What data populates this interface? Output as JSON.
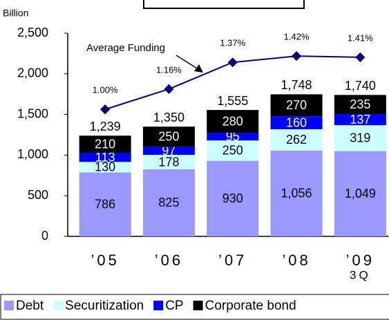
{
  "chart_data": {
    "type": "bar",
    "unit_label": "Billion",
    "categories": [
      "’05",
      "’06",
      "’07",
      "’08",
      "’09\n3Q"
    ],
    "series": [
      {
        "name": "Debt",
        "color": "#9999ff",
        "label_color": "#000000",
        "values": [
          786,
          825,
          930,
          1056,
          1049
        ],
        "value_labels": [
          "786",
          "825",
          "930",
          "1,056",
          "1,049"
        ]
      },
      {
        "name": "Securitization",
        "color": "#ccffff",
        "label_color": "#000000",
        "values": [
          130,
          178,
          250,
          262,
          319
        ]
      },
      {
        "name": "CP",
        "color": "#0000ff",
        "label_color": "#ffffff",
        "values": [
          113,
          97,
          95,
          160,
          137
        ]
      },
      {
        "name": "Corporate bond",
        "color": "#000000",
        "label_color": "#ffffff",
        "values": [
          210,
          250,
          280,
          270,
          235
        ]
      }
    ],
    "totals": {
      "values": [
        1239,
        1350,
        1555,
        1748,
        1740
      ],
      "value_labels": [
        "1,239",
        "1,350",
        "1,555",
        "1,748",
        "1,740"
      ]
    },
    "line": {
      "name": "Average Funding",
      "type": "line",
      "axis": "y2",
      "color": "#000080",
      "values": [
        1.0,
        1.16,
        1.37,
        1.42,
        1.41
      ],
      "value_labels": [
        "1.00%",
        "1.16%",
        "1.37%",
        "1.42%",
        "1.41%"
      ]
    },
    "ylim": [
      0,
      2500
    ],
    "yticks": [
      0,
      500,
      {
        "value": 1000,
        "label": "1,000"
      },
      {
        "value": 1500,
        "label": "1,500"
      },
      {
        "value": 2000,
        "label": "2,000"
      },
      {
        "value": 2500,
        "label": "2,500"
      }
    ],
    "y2lim": [
      0,
      1.6
    ],
    "legend": "bottom"
  }
}
